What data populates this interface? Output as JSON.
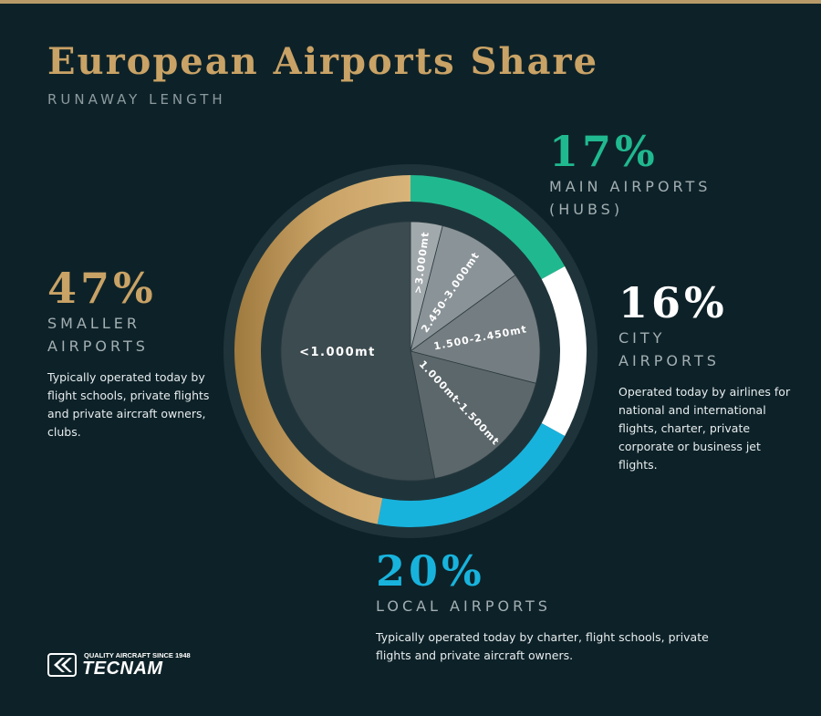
{
  "header": {
    "title": "European Airports Share",
    "subtitle": "RUNAWAY LENGTH"
  },
  "colors": {
    "background": "#0d2228",
    "gold": "#c9a266",
    "green": "#20b98f",
    "blue": "#18b3dd",
    "white": "#ffffff",
    "ring_gap": "#1f343a"
  },
  "chart_data": [
    {
      "type": "pie",
      "variant": "donut",
      "categories": [
        "MAIN AIRPORTS (HUBS)",
        "CITY AIRPORTS",
        "LOCAL AIRPORTS",
        "SMALLER AIRPORTS"
      ],
      "values": [
        17,
        16,
        20,
        47
      ],
      "unit": "%",
      "colors": [
        "#20b98f",
        "#ffffff",
        "#18b3dd",
        "#c9a266"
      ],
      "start": "top, clockwise"
    },
    {
      "type": "pie",
      "categories": [
        ">3.000mt",
        "2.450-3.000mt",
        "1.500-2.450mt",
        "1.000mt-1.500mt",
        "<1.000mt"
      ],
      "values": [
        4,
        11,
        14,
        18,
        53
      ],
      "colors": [
        "#a2a9ac",
        "#8a9398",
        "#747d81",
        "#5c676b",
        "#3c4b50"
      ],
      "start": "top, clockwise"
    }
  ],
  "segments": {
    "main": {
      "percent": "17%",
      "label_lines": [
        "MAIN AIRPORTS",
        "(HUBS)"
      ],
      "color": "#20b98f"
    },
    "city": {
      "percent": "16%",
      "label_lines": [
        "CITY",
        "AIRPORTS"
      ],
      "description": "Operated today by airlines for national and international flights, charter, private corporate or business jet flights.",
      "color": "#ffffff"
    },
    "local": {
      "percent": "20%",
      "label_lines": [
        "LOCAL AIRPORTS"
      ],
      "description": "Typically operated today by charter, flight schools, private flights and private aircraft owners.",
      "color": "#18b3dd"
    },
    "smaller": {
      "percent": "47%",
      "label_lines": [
        "SMALLER",
        "AIRPORTS"
      ],
      "description": "Typically operated today by flight schools, private flights and private aircraft owners, clubs.",
      "color": "#c9a266"
    }
  },
  "logo": {
    "tagline": "QUALITY AIRCRAFT SINCE 1948",
    "name": "TECNAM"
  }
}
